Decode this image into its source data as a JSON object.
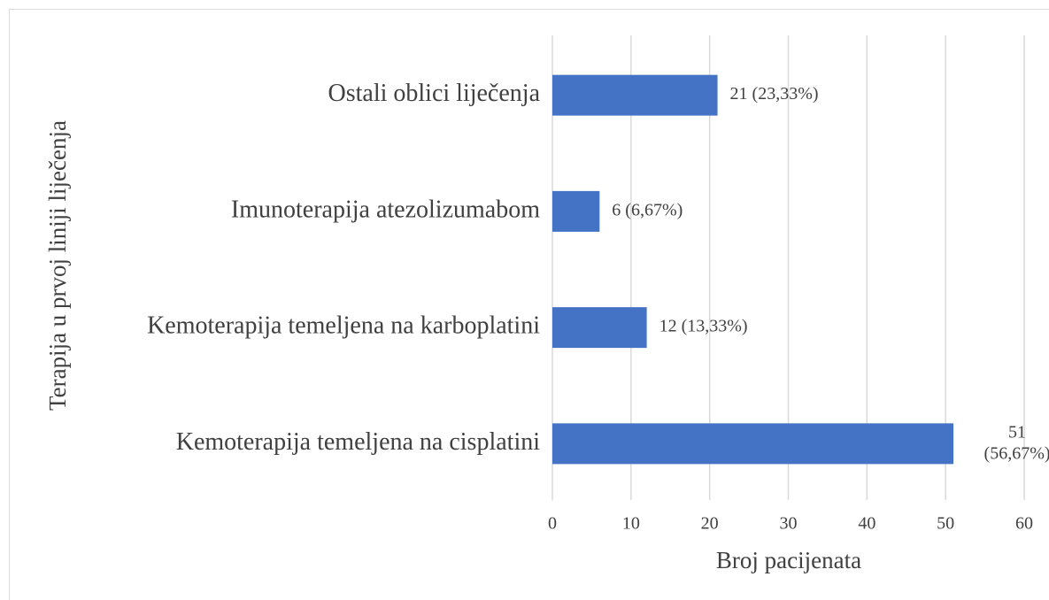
{
  "chart_data": {
    "type": "bar",
    "orientation": "horizontal",
    "categories": [
      "Ostali oblici liječenja",
      "Imunoterapija atezolizumabom",
      "Kemoterapija temeljena na karboplatini",
      "Kemoterapija temeljena na cisplatini"
    ],
    "values": [
      21,
      6,
      12,
      51
    ],
    "value_labels": [
      "21 (23,33%)",
      "6 (6,67%)",
      "12 (13,33%)",
      "51 (56,67%)"
    ],
    "color": "#4472c4",
    "xlabel": "Broj pacijenata",
    "ylabel": "Terapija u prvoj liniji liječenja",
    "xlim": [
      0,
      60
    ],
    "xticks": [
      0,
      10,
      20,
      30,
      40,
      50,
      60
    ],
    "grid": true
  }
}
